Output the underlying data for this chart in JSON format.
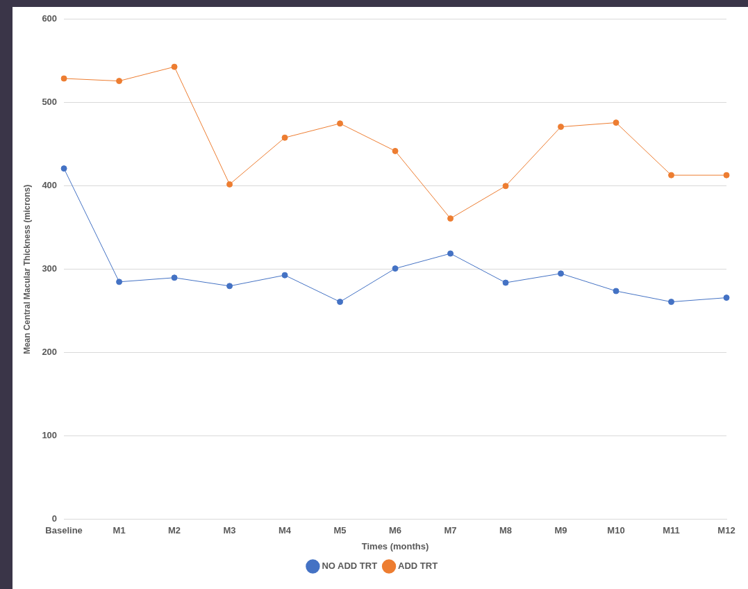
{
  "chart_data": {
    "type": "line",
    "xlabel": "Times (months)",
    "ylabel": "Mean Central Macular Thickness (microns)",
    "categories": [
      "Baseline",
      "M1",
      "M2",
      "M3",
      "M4",
      "M5",
      "M6",
      "M7",
      "M8",
      "M9",
      "M10",
      "M11",
      "M12"
    ],
    "series": [
      {
        "name": "NO ADD TRT",
        "color": "#4472c4",
        "values": [
          421,
          285,
          290,
          280,
          293,
          261,
          301,
          319,
          284,
          295,
          274,
          261,
          266
        ]
      },
      {
        "name": "ADD TRT",
        "color": "#ed7d31",
        "values": [
          529,
          526,
          543,
          402,
          458,
          475,
          442,
          361,
          400,
          471,
          476,
          413,
          413
        ]
      }
    ],
    "ylim": [
      0,
      600
    ],
    "yticks": [
      0,
      100,
      200,
      300,
      400,
      500,
      600
    ],
    "grid": "y",
    "legend": "bottom",
    "marker": "circle",
    "line_style": "solid"
  }
}
